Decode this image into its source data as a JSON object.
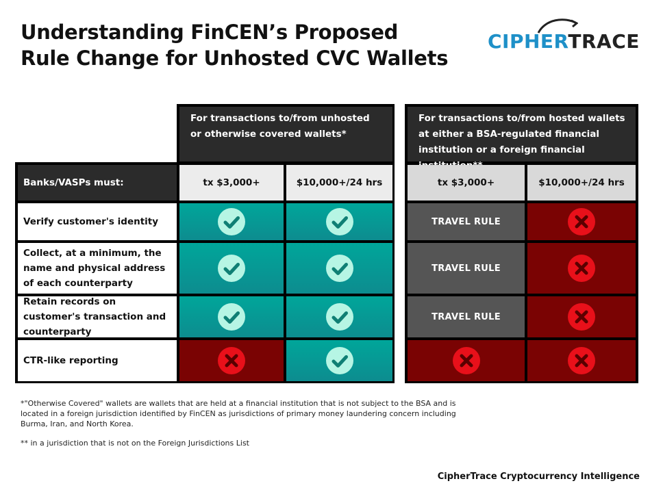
{
  "title": {
    "line1": "Understanding FinCEN’s Proposed",
    "line2": "Rule Change for Unhosted CVC Wallets"
  },
  "logo": {
    "text_part1": "CIPHER",
    "text_part2": "TRACE",
    "colors": {
      "cipher": "#1e90c8",
      "trace": "#222222"
    }
  },
  "table": {
    "group_headers": {
      "unhosted": "For transactions to/from unhosted or otherwise covered wallets*",
      "hosted": "For transactions to/from hosted wallets at either a BSA-regulated financial institution or a foreign financial institution**"
    },
    "row_header": "Banks/VASPs must:",
    "columns": [
      "tx $3,000+",
      "$10,000+/24 hrs",
      "tx $3,000+",
      "$10,000+/24 hrs"
    ],
    "rows": [
      {
        "label": "Verify customer's identity",
        "cells": [
          "check",
          "check",
          "travel_rule",
          "cross"
        ]
      },
      {
        "label": "Collect, at a minimum, the name and physical address of each counterparty",
        "cells": [
          "check",
          "check",
          "travel_rule",
          "cross"
        ]
      },
      {
        "label": "Retain records on customer's transaction and counterparty",
        "cells": [
          "check",
          "check",
          "travel_rule",
          "cross"
        ]
      },
      {
        "label": "CTR-like reporting",
        "cells": [
          "cross",
          "check",
          "cross",
          "cross"
        ]
      }
    ],
    "travel_rule_label": "TRAVEL RULE",
    "colors": {
      "required": "#00a69a",
      "not_required": "#7a0303",
      "travel_rule": "#555555",
      "check_icon": "#b6f5e4",
      "cross_icon": "#e8101a"
    }
  },
  "footnotes": {
    "note1": "*\"Otherwise Covered\" wallets are wallets that are held at a financial institution that is not subject to the BSA and is located in a foreign jurisdiction identified by FinCEN as jurisdictions of primary money laundering concern including Burma, Iran, and North Korea.",
    "note2": "** in a jurisdiction that is not on the Foreign Jurisdictions List"
  },
  "footer": "CipherTrace Cryptocurrency Intelligence"
}
